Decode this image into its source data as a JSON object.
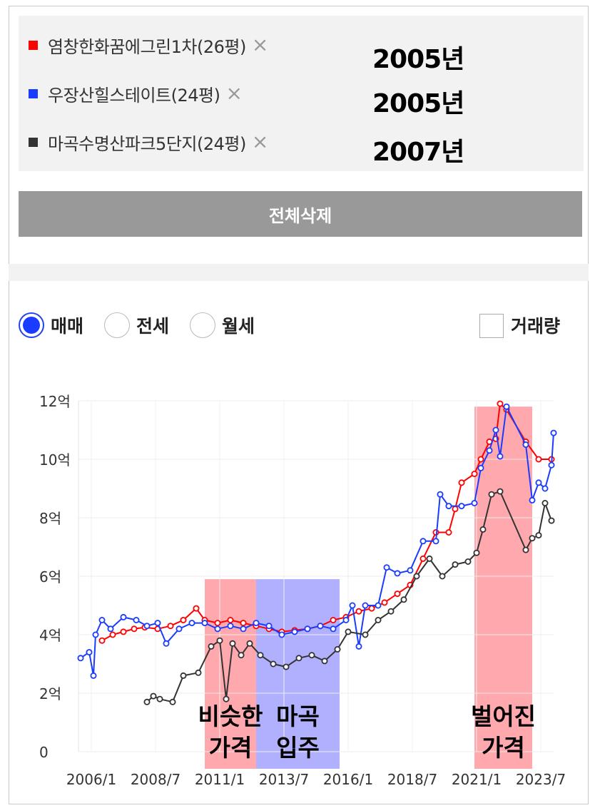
{
  "legend": {
    "items": [
      {
        "name": "염창한화꿈에그린1차(26평)",
        "year": "2005년",
        "color": "#ff0000"
      },
      {
        "name": "우장산힐스테이트(24평)",
        "year": "2005년",
        "color": "#1a3cff"
      },
      {
        "name": "마곡수명산파크5단지(24평)",
        "year": "2007년",
        "color": "#333333"
      }
    ],
    "remove_icon": "×"
  },
  "delete_all_label": "전체삭제",
  "tabs": [
    {
      "label": "매매",
      "selected": true
    },
    {
      "label": "전세",
      "selected": false
    },
    {
      "label": "월세",
      "selected": false
    }
  ],
  "volume_label": "거래량",
  "volume_checked": false,
  "chart_data": {
    "type": "line",
    "x_ticks": [
      "2006/1",
      "2008/7",
      "2011/1",
      "2013/7",
      "2016/1",
      "2018/7",
      "2021/1",
      "2023/7"
    ],
    "y_ticks": [
      "0",
      "2억",
      "4억",
      "6억",
      "8억",
      "10억",
      "12억"
    ],
    "ylim": [
      0,
      12
    ],
    "xlim": [
      "2005/7",
      "2024/1"
    ],
    "grid": true,
    "series": [
      {
        "name": "염창한화꿈에그린1차(26평)",
        "color": "#ff0000",
        "points": [
          [
            "2006/6",
            3.8
          ],
          [
            "2006/11",
            4.0
          ],
          [
            "2007/4",
            4.1
          ],
          [
            "2007/9",
            4.2
          ],
          [
            "2008/2",
            4.25
          ],
          [
            "2008/8",
            4.2
          ],
          [
            "2009/2",
            4.3
          ],
          [
            "2009/8",
            4.5
          ],
          [
            "2010/2",
            4.9
          ],
          [
            "2010/6",
            4.5
          ],
          [
            "2010/12",
            4.4
          ],
          [
            "2011/6",
            4.5
          ],
          [
            "2011/12",
            4.4
          ],
          [
            "2012/6",
            4.3
          ],
          [
            "2012/12",
            4.2
          ],
          [
            "2013/6",
            4.1
          ],
          [
            "2013/12",
            4.15
          ],
          [
            "2014/6",
            4.2
          ],
          [
            "2014/12",
            4.3
          ],
          [
            "2015/6",
            4.5
          ],
          [
            "2015/12",
            4.6
          ],
          [
            "2016/6",
            4.8
          ],
          [
            "2016/12",
            4.9
          ],
          [
            "2017/6",
            5.1
          ],
          [
            "2017/12",
            5.4
          ],
          [
            "2018/6",
            5.7
          ],
          [
            "2018/12",
            6.6
          ],
          [
            "2019/6",
            7.5
          ],
          [
            "2019/12",
            7.5
          ],
          [
            "2020/3",
            8.3
          ],
          [
            "2020/6",
            9.2
          ],
          [
            "2020/12",
            9.5
          ],
          [
            "2021/3",
            10.0
          ],
          [
            "2021/7",
            10.6
          ],
          [
            "2021/10",
            10.7
          ],
          [
            "2021/12",
            11.9
          ],
          [
            "2022/3",
            11.7
          ],
          [
            "2022/12",
            10.6
          ],
          [
            "2023/6",
            10.0
          ],
          [
            "2023/12",
            10.0
          ]
        ]
      },
      {
        "name": "우장산힐스테이트(24평)",
        "color": "#1a3cff",
        "points": [
          [
            "2005/8",
            3.2
          ],
          [
            "2005/12",
            3.4
          ],
          [
            "2006/2",
            2.6
          ],
          [
            "2006/3",
            4.0
          ],
          [
            "2006/6",
            4.5
          ],
          [
            "2006/10",
            4.2
          ],
          [
            "2007/4",
            4.6
          ],
          [
            "2007/10",
            4.5
          ],
          [
            "2008/3",
            4.3
          ],
          [
            "2008/8",
            4.4
          ],
          [
            "2008/12",
            3.7
          ],
          [
            "2009/6",
            4.2
          ],
          [
            "2009/12",
            4.4
          ],
          [
            "2010/6",
            4.4
          ],
          [
            "2010/12",
            4.2
          ],
          [
            "2011/6",
            4.3
          ],
          [
            "2011/12",
            4.2
          ],
          [
            "2012/6",
            4.4
          ],
          [
            "2012/12",
            4.3
          ],
          [
            "2013/6",
            4.0
          ],
          [
            "2013/12",
            4.1
          ],
          [
            "2014/6",
            4.2
          ],
          [
            "2014/12",
            4.3
          ],
          [
            "2015/6",
            4.2
          ],
          [
            "2015/12",
            4.5
          ],
          [
            "2016/3",
            5.0
          ],
          [
            "2016/6",
            3.6
          ],
          [
            "2016/9",
            5.0
          ],
          [
            "2017/3",
            5.0
          ],
          [
            "2017/7",
            6.3
          ],
          [
            "2017/12",
            6.1
          ],
          [
            "2018/6",
            6.2
          ],
          [
            "2018/12",
            7.2
          ],
          [
            "2019/6",
            7.2
          ],
          [
            "2019/8",
            8.8
          ],
          [
            "2019/12",
            8.4
          ],
          [
            "2020/6",
            8.4
          ],
          [
            "2020/12",
            8.5
          ],
          [
            "2021/3",
            9.7
          ],
          [
            "2021/7",
            10.3
          ],
          [
            "2021/10",
            11.0
          ],
          [
            "2021/12",
            10.1
          ],
          [
            "2022/3",
            11.8
          ],
          [
            "2022/12",
            10.5
          ],
          [
            "2023/3",
            8.6
          ],
          [
            "2023/6",
            9.2
          ],
          [
            "2023/9",
            9.0
          ],
          [
            "2023/12",
            9.8
          ],
          [
            "2024/1",
            10.9
          ]
        ]
      },
      {
        "name": "마곡수명산파크5단지(24평)",
        "color": "#333333",
        "points": [
          [
            "2008/3",
            1.7
          ],
          [
            "2008/6",
            1.9
          ],
          [
            "2008/9",
            1.8
          ],
          [
            "2009/3",
            1.7
          ],
          [
            "2009/8",
            2.6
          ],
          [
            "2010/3",
            2.7
          ],
          [
            "2010/9",
            3.6
          ],
          [
            "2011/1",
            3.8
          ],
          [
            "2011/4",
            1.8
          ],
          [
            "2011/7",
            3.7
          ],
          [
            "2011/11",
            3.3
          ],
          [
            "2012/3",
            3.7
          ],
          [
            "2012/8",
            3.3
          ],
          [
            "2013/2",
            3.0
          ],
          [
            "2013/8",
            2.9
          ],
          [
            "2014/2",
            3.2
          ],
          [
            "2014/8",
            3.3
          ],
          [
            "2015/2",
            3.1
          ],
          [
            "2015/8",
            3.5
          ],
          [
            "2016/1",
            4.1
          ],
          [
            "2016/9",
            4.0
          ],
          [
            "2017/3",
            4.5
          ],
          [
            "2017/9",
            4.8
          ],
          [
            "2018/3",
            5.2
          ],
          [
            "2018/9",
            6.0
          ],
          [
            "2019/3",
            6.6
          ],
          [
            "2019/9",
            6.0
          ],
          [
            "2020/3",
            6.4
          ],
          [
            "2020/9",
            6.5
          ],
          [
            "2021/1",
            6.8
          ],
          [
            "2021/4",
            7.6
          ],
          [
            "2021/8",
            8.8
          ],
          [
            "2021/12",
            8.9
          ],
          [
            "2022/12",
            6.9
          ],
          [
            "2023/3",
            7.3
          ],
          [
            "2023/6",
            7.4
          ],
          [
            "2023/9",
            8.5
          ],
          [
            "2023/12",
            7.9
          ]
        ]
      }
    ],
    "highlights": [
      {
        "from": "2010/6",
        "to": "2012/6",
        "color": "#ff6e78",
        "label": [
          "비슷한",
          "가격"
        ]
      },
      {
        "from": "2012/6",
        "to": "2015/9",
        "color": "#7b7bff",
        "label": [
          "마곡",
          "입주"
        ]
      },
      {
        "from": "2020/12",
        "to": "2023/3",
        "color": "#ff6e78",
        "label": [
          "벌어진",
          "가격"
        ]
      }
    ]
  }
}
